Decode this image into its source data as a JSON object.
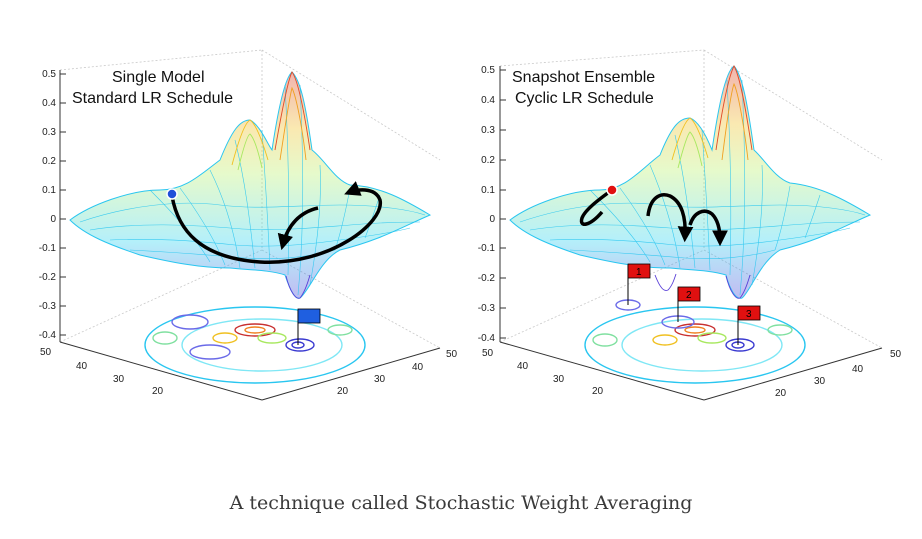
{
  "caption": "A technique called Stochastic Weight Averaging",
  "panels": [
    {
      "title_line1": "Single Model",
      "title_line2": "Standard LR Schedule",
      "z_ticks": [
        "0.5",
        "0.4",
        "0.3",
        "0.2",
        "0.1",
        "0",
        "-0.1",
        "-0.2",
        "-0.3",
        "-0.4"
      ],
      "x_ticks": [
        "50",
        "40",
        "30",
        "20"
      ],
      "y_ticks": [
        "20",
        "30",
        "40",
        "50"
      ],
      "marker_color": "#1f4fd8",
      "flag_color": "#1f5fe0"
    },
    {
      "title_line1": "Snapshot Ensemble",
      "title_line2": "Cyclic LR Schedule",
      "z_ticks": [
        "0.5",
        "0.4",
        "0.3",
        "0.2",
        "0.1",
        "0",
        "-0.1",
        "-0.2",
        "-0.3",
        "-0.4"
      ],
      "x_ticks": [
        "50",
        "40",
        "30",
        "20"
      ],
      "y_ticks": [
        "20",
        "30",
        "40",
        "50"
      ],
      "marker_color": "#e01010",
      "flag_color": "#e01010",
      "flag_labels": [
        "1",
        "2",
        "3"
      ]
    }
  ]
}
